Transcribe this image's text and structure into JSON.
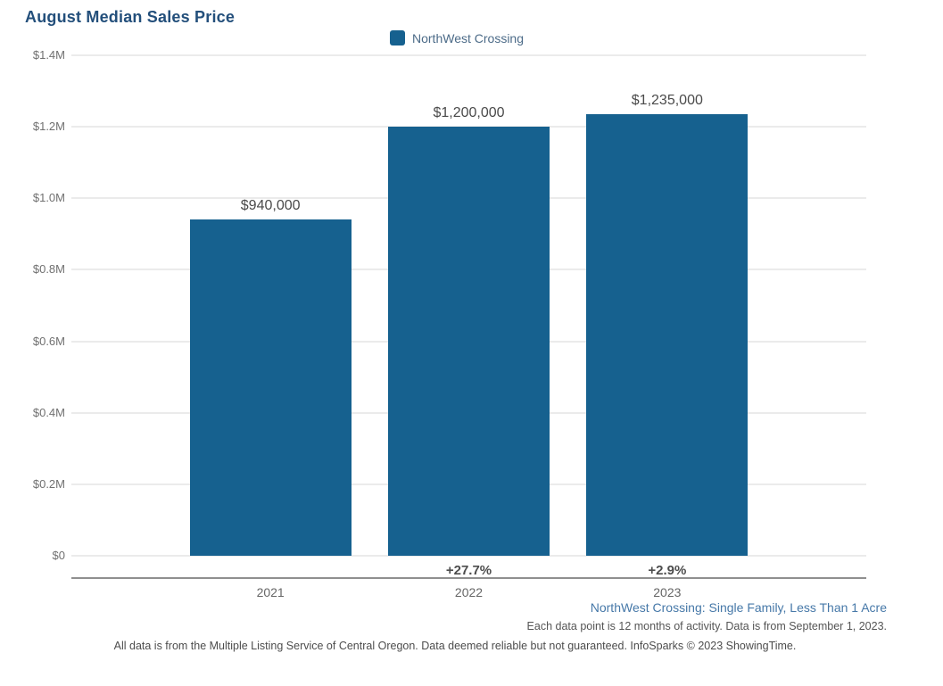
{
  "chart_data": {
    "type": "bar",
    "title": "August Median Sales Price",
    "legend": [
      {
        "label": "NorthWest Crossing",
        "color": "#16618f"
      }
    ],
    "legend_position": "top-center",
    "categories": [
      "2021",
      "2022",
      "2023"
    ],
    "series": [
      {
        "name": "NorthWest Crossing",
        "values": [
          940000,
          1200000,
          1235000
        ]
      }
    ],
    "value_labels": [
      "$940,000",
      "$1,200,000",
      "$1,235,000"
    ],
    "pct_change_labels": [
      "",
      "+27.7%",
      "+2.9%"
    ],
    "xlabel": "",
    "ylabel": "",
    "ylim": [
      0,
      1400000
    ],
    "yticks": [
      0,
      200000,
      400000,
      600000,
      800000,
      1000000,
      1200000,
      1400000
    ],
    "ytick_labels": [
      "$0",
      "$0.2M",
      "$0.4M",
      "$0.6M",
      "$0.8M",
      "$1.0M",
      "$1.2M",
      "$1.4M"
    ],
    "grid": true,
    "bar_color": "#16618f"
  },
  "colors": {
    "bar": "#16618f",
    "title": "#234f7b",
    "legend_text": "#4c6b88",
    "subtitle": "#4678a8",
    "gridline": "#ebebeb",
    "axis_line": "#8f8f8f"
  },
  "notes": {
    "series_subtitle": "NorthWest Crossing: Single Family, Less Than 1 Acre",
    "data_note": "Each data point is 12 months of activity. Data is from September 1, 2023.",
    "footer": "All data is from the Multiple Listing Service of Central Oregon. Data deemed reliable but not guaranteed. InfoSparks © 2023 ShowingTime."
  }
}
